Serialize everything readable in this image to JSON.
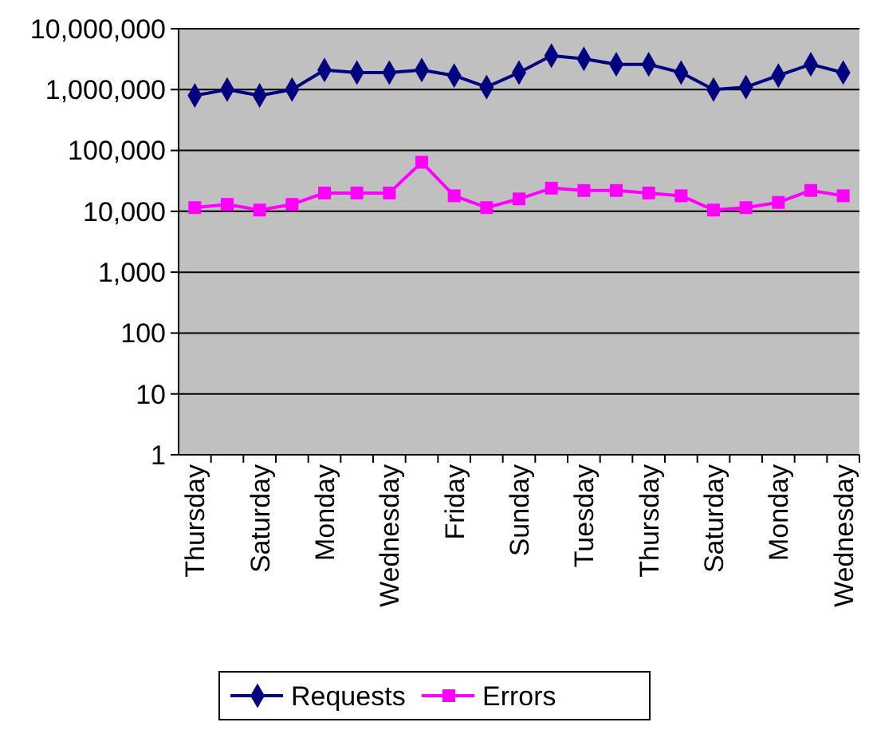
{
  "chart_data": {
    "type": "line",
    "categories": [
      "Thursday",
      null,
      "Saturday",
      null,
      "Monday",
      null,
      "Wednesday",
      null,
      "Friday",
      null,
      "Sunday",
      null,
      "Tuesday",
      null,
      "Thursday",
      null,
      "Saturday",
      null,
      "Monday",
      null,
      "Wednesday"
    ],
    "series": [
      {
        "name": "Requests",
        "color": "#000080",
        "marker": "diamond",
        "values": [
          800000,
          1000000,
          800000,
          1000000,
          2100000,
          1900000,
          1900000,
          2100000,
          1700000,
          1100000,
          1900000,
          3600000,
          3200000,
          2600000,
          2600000,
          1900000,
          1000000,
          1100000,
          1700000,
          2600000,
          1900000
        ]
      },
      {
        "name": "Errors",
        "color": "#ff00ff",
        "marker": "square",
        "values": [
          11500,
          13000,
          10500,
          13000,
          20000,
          20000,
          20000,
          64000,
          18000,
          11500,
          16000,
          24000,
          22000,
          22000,
          20000,
          18000,
          10500,
          11500,
          14000,
          22000,
          18000
        ]
      }
    ],
    "log": true,
    "ylim": [
      1,
      10000000
    ],
    "yticks": [
      {
        "value": 1,
        "label": "1"
      },
      {
        "value": 10,
        "label": "10"
      },
      {
        "value": 100,
        "label": "100"
      },
      {
        "value": 1000,
        "label": "1,000"
      },
      {
        "value": 10000,
        "label": "10,000"
      },
      {
        "value": 100000,
        "label": "100,000"
      },
      {
        "value": 1000000,
        "label": "1,000,000"
      },
      {
        "value": 10000000,
        "label": "10,000,000"
      }
    ],
    "grid": "y",
    "legend": "bottom"
  }
}
